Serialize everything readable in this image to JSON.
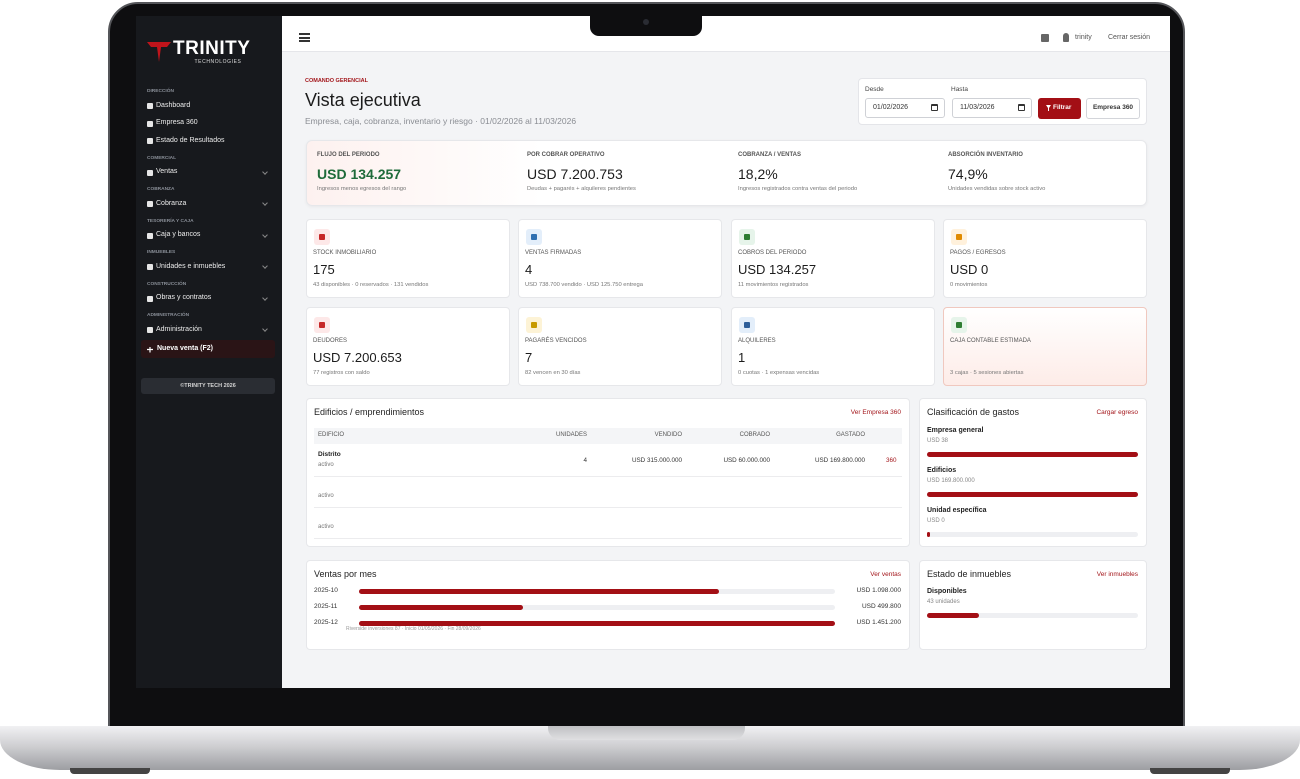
{
  "sidebar": {
    "brand": "TRINITY",
    "brand_sub": "TECHNOLOGIES",
    "sections": [
      {
        "title": "DIRECCIÓN",
        "items": [
          "Dashboard",
          "Empresa 360",
          "Estado de Resultados"
        ]
      },
      {
        "title": "COMERCIAL",
        "items": [
          "Ventas"
        ]
      },
      {
        "title": "COBRANZA",
        "items": [
          "Cobranza"
        ]
      },
      {
        "title": "TESORERÍA Y CAJA",
        "items": [
          "Caja y bancos"
        ]
      },
      {
        "title": "INMUEBLES",
        "items": [
          "Unidades e inmuebles"
        ]
      },
      {
        "title": "CONSTRUCCIÓN",
        "items": [
          "Obras y contratos"
        ]
      },
      {
        "title": "ADMINISTRACIÓN",
        "items": [
          "Administración"
        ]
      }
    ],
    "cta": "Nueva venta (F2)",
    "footer": "©TRINITY TECH 2026"
  },
  "topbar": {
    "user": "trinity",
    "logout": "Cerrar sesión"
  },
  "header": {
    "eyebrow": "COMANDO GERENCIAL",
    "title": "Vista ejecutiva",
    "subtitle": "Empresa, caja, cobranza, inventario y riesgo · 01/02/2026 al 11/03/2026"
  },
  "filter": {
    "from_label": "Desde",
    "from": "01/02/2026",
    "to_label": "Hasta",
    "to": "11/03/2026",
    "apply": "Filtrar",
    "link": "Empresa 360"
  },
  "summary": [
    {
      "label": "FLUJO DEL PERIODO",
      "value": "USD 134.257",
      "note": "Ingresos menos egresos del rango"
    },
    {
      "label": "POR COBRAR OPERATIVO",
      "value": "USD 7.200.753",
      "note": "Deudas + pagarés + alquileres pendientes"
    },
    {
      "label": "COBRANZA / VENTAS",
      "value": "18,2%",
      "note": "Ingresos registrados contra ventas del periodo"
    },
    {
      "label": "ABSORCIÓN INVENTARIO",
      "value": "74,9%",
      "note": "Unidades vendidas sobre stock activo"
    }
  ],
  "cards": [
    {
      "label": "STOCK INMOBILIARIO",
      "value": "175",
      "note": "43 disponibles · 0 reservados · 131 vendidos"
    },
    {
      "label": "VENTAS FIRMADAS",
      "value": "4",
      "note": "USD 738.700 vendido · USD 125.750 entrega"
    },
    {
      "label": "COBROS DEL PERIODO",
      "value": "USD 134.257",
      "note": "11 movimientos registrados"
    },
    {
      "label": "PAGOS / EGRESOS",
      "value": "USD 0",
      "note": "0 movimientos"
    },
    {
      "label": "DEUDORES",
      "value": "USD 7.200.653",
      "note": "77 registros con saldo"
    },
    {
      "label": "PAGARÉS VENCIDOS",
      "value": "7",
      "note": "82 vencen en 30 días"
    },
    {
      "label": "ALQUILERES",
      "value": "1",
      "note": "0 cuotas · 1 expensas vencidas"
    },
    {
      "label": "CAJA CONTABLE ESTIMADA",
      "note": "3 cajas · 5 sesiones abiertas"
    }
  ],
  "buildings": {
    "title": "Edificios / emprendimientos",
    "link": "Ver Empresa 360",
    "columns": [
      "EDIFICIO",
      "UNIDADES",
      "VENDIDO",
      "COBRADO",
      "GASTADO"
    ],
    "rows": [
      {
        "name": "Distrito",
        "status": "activo",
        "units": 4,
        "sold": "USD 315.000.000",
        "collected": "USD 60.000.000",
        "spent": "USD 169.800.000",
        "action": "360"
      },
      {
        "status": "activo"
      },
      {
        "status": "activo"
      }
    ]
  },
  "expenses": {
    "title": "Clasificación de gastos",
    "link": "Cargar egreso",
    "items": [
      {
        "name": "Empresa general",
        "amount": "USD 38"
      },
      {
        "name": "Edificios",
        "amount": "USD 169.800.000"
      },
      {
        "name": "Unidad específica",
        "amount": "USD 0"
      }
    ]
  },
  "sales_by_month": {
    "title": "Ventas por mes",
    "link": "Ver ventas",
    "rows": [
      {
        "month": "2025-10",
        "value": 1098000,
        "label": "USD 1.098.000"
      },
      {
        "month": "2025-11",
        "value": 499800,
        "label": "USD 499.800"
      },
      {
        "month": "2025-12",
        "value": 1451200,
        "label": "USD 1.451.200"
      }
    ],
    "footnote": "Riverside inversiones 87 · Inicio 01/05/2026 · Fin 28/09/2026"
  },
  "property_status": {
    "title": "Estado de inmuebles",
    "link": "Ver inmuebles",
    "items": [
      {
        "name": "Disponibles",
        "value": 43,
        "label": "43 unidades"
      }
    ]
  }
}
